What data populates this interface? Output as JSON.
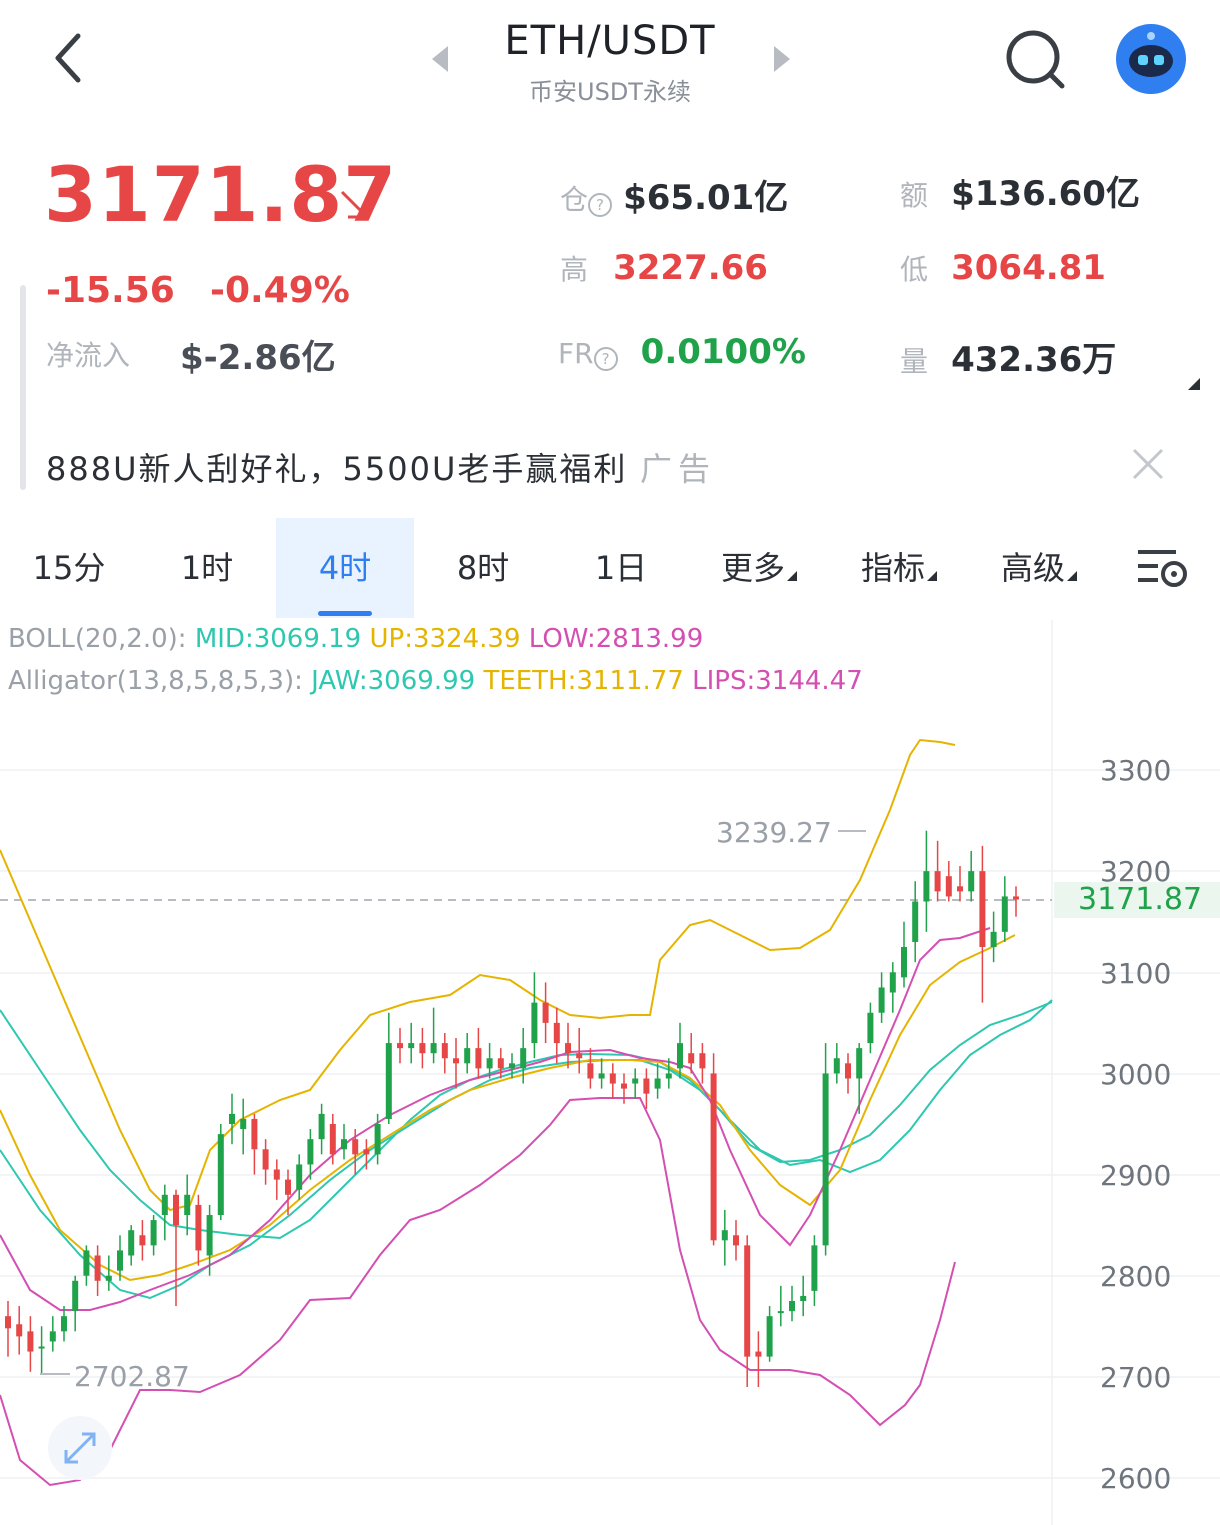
{
  "header": {
    "pair": "ETH/USDT",
    "market": "币安USDT永续"
  },
  "quote": {
    "price": "3171.87",
    "change": "-15.56",
    "change_pct": "-0.49%",
    "net_inflow_label": "净流入",
    "net_inflow": "$-2.86亿",
    "open_interest_label": "仓",
    "open_interest": "$65.01亿",
    "turnover_label": "额",
    "turnover": "$136.60亿",
    "high_label": "高",
    "high": "3227.66",
    "low_label": "低",
    "low": "3064.81",
    "fr_label": "FR",
    "fr": "0.0100%",
    "volume_label": "量",
    "volume": "432.36万"
  },
  "ad": {
    "text": "888U新人刮好礼，5500U老手赢福利",
    "tag": "广告"
  },
  "tabs": [
    {
      "label": "15分"
    },
    {
      "label": "1时"
    },
    {
      "label": "4时",
      "active": true
    },
    {
      "label": "8时"
    },
    {
      "label": "1日"
    },
    {
      "label": "更多"
    },
    {
      "label": "指标"
    },
    {
      "label": "高级"
    }
  ],
  "indicators": {
    "boll_label": "BOLL(20,2.0):",
    "boll_mid": "MID:3069.19",
    "boll_up": "UP:3324.39",
    "boll_low": "LOW:2813.99",
    "alligator_label": "Alligator(13,8,5,8,5,3):",
    "jaw": "JAW:3069.99",
    "teeth": "TEETH:3111.77",
    "lips": "LIPS:3144.47"
  },
  "chart": {
    "y_ticks": [
      "3300",
      "3200",
      "3100",
      "3000",
      "2900",
      "2800",
      "2700",
      "2600"
    ],
    "current_price": "3171.87",
    "high_marker": "3239.27",
    "low_marker": "2702.87"
  },
  "colors": {
    "up": "#1fa24a",
    "down": "#e64646",
    "accent": "#2f7ff0",
    "boll_mid": "#2ec7b0",
    "boll_up": "#e5b400",
    "boll_low": "#d44fb2"
  },
  "icons": {
    "back": "chevron-left-icon",
    "search": "search-icon",
    "avatar": "robot-avatar-icon",
    "close": "close-icon",
    "chart_settings": "chart-settings-icon",
    "expand": "expand-icon"
  }
}
